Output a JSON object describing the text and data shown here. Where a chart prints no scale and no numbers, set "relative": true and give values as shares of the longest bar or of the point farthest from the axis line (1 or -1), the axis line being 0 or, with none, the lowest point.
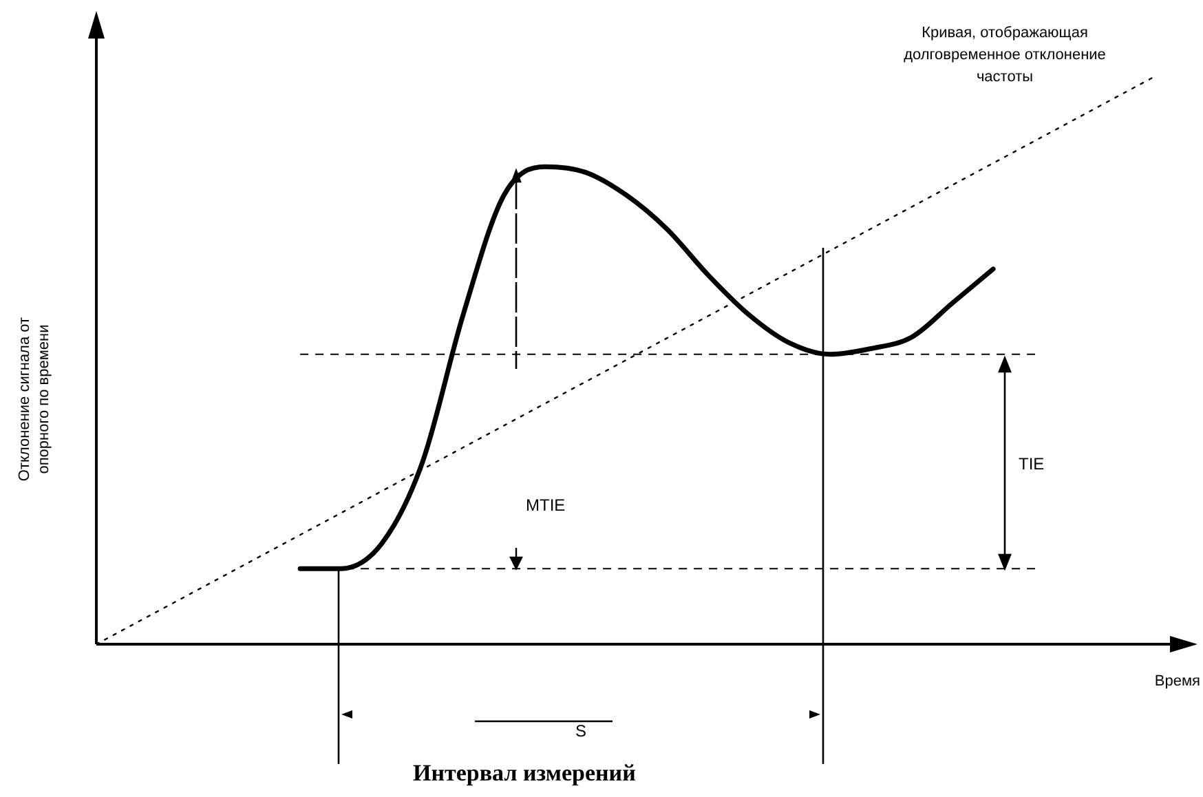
{
  "chart_data": {
    "type": "line",
    "relative": true,
    "xlabel": "Время",
    "ylabel": "Отклонение сигнала от опорного по времени",
    "categories": [
      null,
      null,
      null,
      null,
      null,
      null,
      null,
      null,
      null,
      null,
      null,
      null,
      null,
      null,
      null,
      null,
      null,
      null,
      null,
      null,
      null,
      null,
      null,
      null,
      null,
      null,
      null
    ],
    "series": [
      {
        "color": "#000000",
        "line_style": "solid",
        "values": [
          null,
          null,
          null,
          null,
          null,
          0.133,
          0.133,
          0.177,
          0.32,
          0.58,
          0.79,
          0.84,
          0.83,
          0.79,
          0.73,
          0.65,
          0.58,
          0.53,
          0.51,
          0.52,
          0.54,
          0.6,
          0.66,
          null,
          null,
          null,
          null
        ]
      },
      {
        "name": "Кривая, отображающая долговременное отклонение частоты",
        "color": "#000000",
        "line_style": "dotted",
        "values": [
          0,
          null,
          null,
          null,
          null,
          null,
          null,
          null,
          null,
          null,
          null,
          null,
          null,
          null,
          null,
          null,
          null,
          null,
          null,
          null,
          null,
          null,
          null,
          null,
          null,
          null,
          1
        ]
      }
    ],
    "ref_lines": [
      {
        "axis": "y",
        "value": 0.133,
        "line_style": "dashed"
      },
      {
        "axis": "y",
        "value": 0.51,
        "line_style": "dashed"
      }
    ],
    "annotations": [
      "MTIE",
      "TIE",
      "S",
      "Интервал измерений"
    ],
    "legend": false,
    "marker": "none"
  }
}
